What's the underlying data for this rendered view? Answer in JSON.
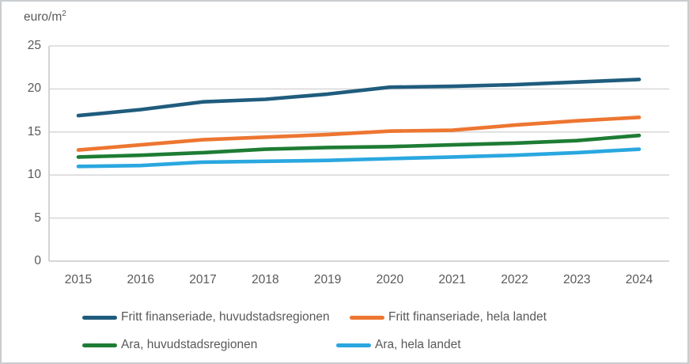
{
  "chart_data": {
    "type": "line",
    "title": "",
    "ylabel": "euro/m²",
    "axis_title": {
      "base": "euro/m",
      "sup": "2"
    },
    "xlabel": "",
    "categories": [
      "2015",
      "2016",
      "2017",
      "2018",
      "2019",
      "2020",
      "2021",
      "2022",
      "2023",
      "2024"
    ],
    "y_ticks": [
      "25",
      "20",
      "15",
      "10",
      "5",
      "0"
    ],
    "ylim": [
      0,
      25
    ],
    "y_tick_step": 5,
    "grid": "horizontal",
    "legend_position": "bottom",
    "series": [
      {
        "name": "Fritt finanseriade, huvudstadsregionen",
        "color": "#1f5c7d",
        "values": [
          16.9,
          17.6,
          18.5,
          18.8,
          19.4,
          20.2,
          20.3,
          20.5,
          20.8,
          21.1
        ]
      },
      {
        "name": "Fritt finanseriade, hela landet",
        "color": "#ed7631",
        "values": [
          12.9,
          13.5,
          14.1,
          14.4,
          14.7,
          15.1,
          15.2,
          15.8,
          16.3,
          16.7
        ]
      },
      {
        "name": "Ara, huvudstadsregionen",
        "color": "#1e7c34",
        "values": [
          12.1,
          12.3,
          12.6,
          13.0,
          13.2,
          13.3,
          13.5,
          13.7,
          14.0,
          14.6
        ]
      },
      {
        "name": "Ara, hela landet",
        "color": "#2aa7df",
        "values": [
          11.0,
          11.1,
          11.5,
          11.6,
          11.7,
          11.9,
          12.1,
          12.3,
          12.6,
          13.0
        ]
      }
    ],
    "colors": {
      "grid": "#d9d9d9",
      "axis": "#c9c9c9",
      "text": "#595959",
      "background": "#ffffff",
      "border": "#c9cdd0"
    }
  }
}
